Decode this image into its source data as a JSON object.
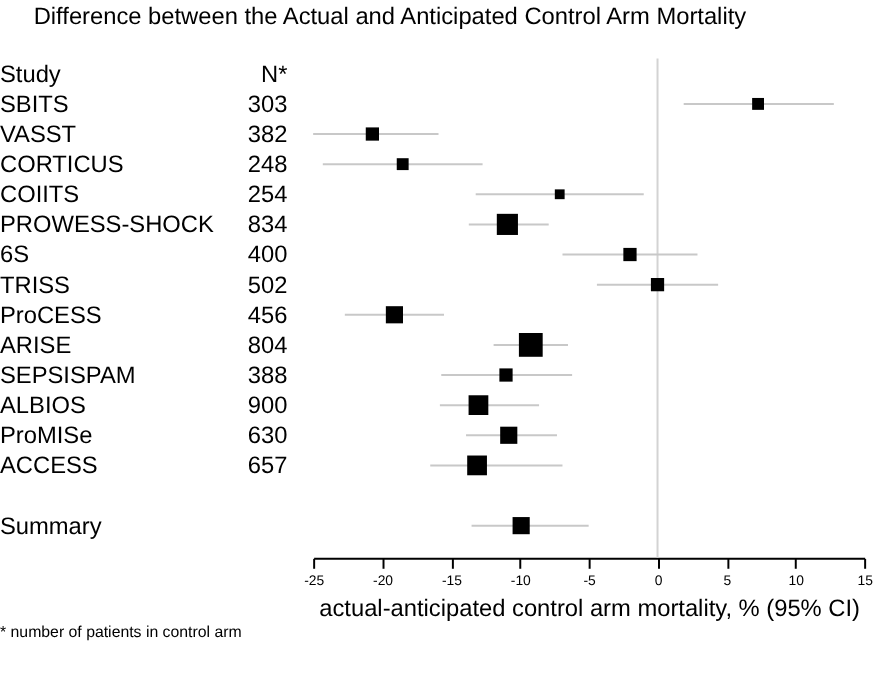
{
  "chart_data": {
    "type": "scatter",
    "orientation": "horizontal",
    "title": "Difference between the Actual and Anticipated Control Arm Mortality",
    "xlabel": "actual-anticipated control arm mortality, % (95% CI)",
    "categories": [
      "SBITS",
      "VASST",
      "CORTICUS",
      "COIITS",
      "PROWESS-SHOCK",
      "6S",
      "TRISS",
      "ProCESS",
      "ARISE",
      "SEPSISPAM",
      "ALBIOS",
      "ProMISe",
      "ACCESS",
      null,
      "Summary"
    ],
    "y2_categories": [
      "303",
      "382",
      "248",
      "254",
      "834",
      "400",
      "502",
      "456",
      "804",
      "388",
      "900",
      "630",
      "657",
      null,
      null
    ],
    "values": [
      7.3,
      -20.7,
      -18.5,
      -7.1,
      -10.9,
      -2.0,
      0.0,
      -19.1,
      -9.2,
      -11.0,
      -13.0,
      -10.8,
      -13.1,
      null,
      -9.9
    ],
    "errors": [
      [
        1.9,
        12.8
      ],
      [
        -25,
        -15.9
      ],
      [
        -24.3,
        -12.7
      ],
      [
        -13.2,
        -1.0
      ],
      [
        -13.7,
        -7.9
      ],
      [
        -6.9,
        2.9
      ],
      [
        -4.4,
        4.4
      ],
      [
        -22.7,
        -15.5
      ],
      [
        -11.9,
        -6.5
      ],
      [
        -15.7,
        -6.2
      ],
      [
        -15.8,
        -8.6
      ],
      [
        -13.9,
        -7.3
      ],
      [
        -16.5,
        -6.9
      ],
      null,
      [
        -13.5,
        -5.0
      ]
    ],
    "sizes": [
      0.25,
      0.31,
      0.25,
      0.17,
      0.79,
      0.31,
      0.31,
      0.52,
      1,
      0.31,
      0.69,
      0.52,
      0.69,
      null,
      0.52
    ],
    "colors": [
      "#000000",
      "#000000",
      "#000000",
      "#000000",
      "#000000",
      "#000000",
      "#000000",
      "#000000",
      "#000000",
      "#000000",
      "#000000",
      "#000000",
      "#000000",
      "#000000",
      "#000000"
    ],
    "marker": "square",
    "xlim": [
      -25,
      15
    ],
    "xticks": [
      -25,
      -20,
      -15,
      -10,
      -5,
      0,
      5,
      10,
      15
    ],
    "ref_lines": [
      {
        "axis": "x",
        "value": 0,
        "color": "#d3d3d3"
      }
    ],
    "annotations": [
      "Study",
      "N*",
      "* number of patients in control arm"
    ],
    "grid": false,
    "legend": false
  }
}
